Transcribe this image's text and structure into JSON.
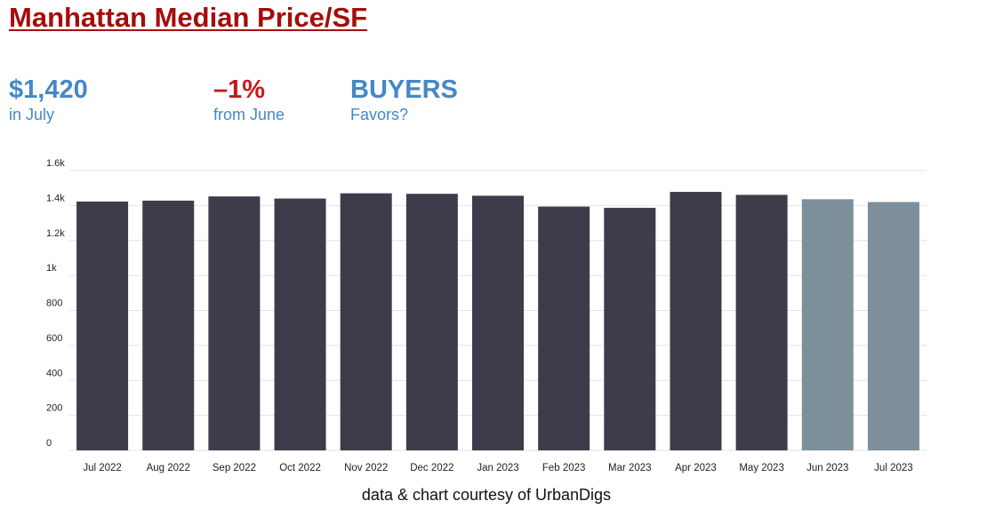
{
  "title": "Manhattan Median Price/SF",
  "kpis": {
    "price": {
      "value": "$1,420",
      "label": "in July"
    },
    "change": {
      "value": "–1%",
      "label": "from June"
    },
    "favors": {
      "value": "BUYERS",
      "label": "Favors?"
    }
  },
  "credit": "data & chart courtesy of UrbanDigs",
  "colors": {
    "title": "#a50d0d",
    "accent_blue": "#4488c6",
    "accent_red": "#c8161d",
    "bar_past": "#3d3c4b",
    "bar_recent": "#7d8f9b",
    "grid": "#e4e4e4"
  },
  "chart_data": {
    "type": "bar",
    "categories": [
      "Jul 2022",
      "Aug 2022",
      "Sep 2022",
      "Oct 2022",
      "Nov 2022",
      "Dec 2022",
      "Jan 2023",
      "Feb 2023",
      "Mar 2023",
      "Apr 2023",
      "May 2023",
      "Jun 2023",
      "Jul 2023"
    ],
    "values": [
      1423,
      1428,
      1452,
      1440,
      1470,
      1467,
      1456,
      1394,
      1387,
      1478,
      1461,
      1436,
      1420
    ],
    "highlighted_categories": [
      "Jun 2023",
      "Jul 2023"
    ],
    "ylim": [
      0,
      1600
    ],
    "y_ticks": [
      0,
      200,
      400,
      600,
      800,
      1000,
      1200,
      1400,
      1600
    ],
    "y_tick_labels": [
      "0",
      "200",
      "400",
      "600",
      "800",
      "1k",
      "1.2k",
      "1.4k",
      "1.6k"
    ],
    "xlabel": "",
    "ylabel": "",
    "grid": true
  }
}
